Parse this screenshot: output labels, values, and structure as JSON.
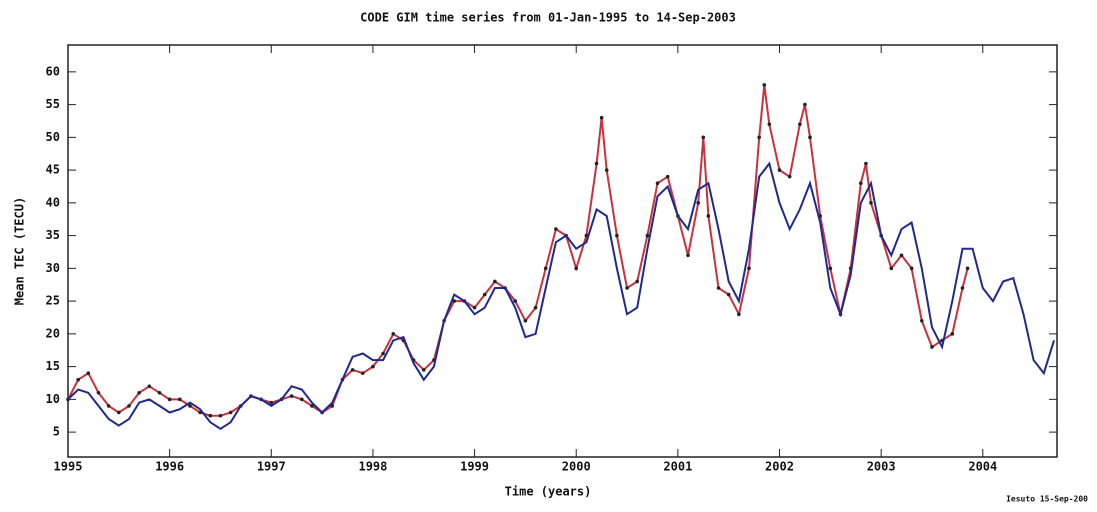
{
  "chart_data": {
    "type": "line",
    "title": "CODE GIM time series from 01-Jan-1995 to 14-Sep-2003",
    "x_label": "Time (years)",
    "y_label": "Mean TEC (TECU)",
    "footnote": "Iesuto 15-Sep-200",
    "xlim": [
      1995,
      2004.73
    ],
    "ylim": [
      1.2,
      64.1
    ],
    "xticks": [
      1995,
      1996,
      1997,
      1998,
      1999,
      2000,
      2001,
      2002,
      2003,
      2004
    ],
    "yticks": [
      5,
      10,
      15,
      20,
      25,
      30,
      35,
      40,
      45,
      50,
      55,
      60
    ],
    "series": [
      {
        "color": "#c8323c",
        "marker_color": "#222222",
        "x": [
          1995.0,
          1995.1,
          1995.2,
          1995.3,
          1995.4,
          1995.5,
          1995.6,
          1995.7,
          1995.8,
          1995.9,
          1996.0,
          1996.1,
          1996.2,
          1996.3,
          1996.4,
          1996.5,
          1996.6,
          1996.7,
          1996.8,
          1996.9,
          1997.0,
          1997.1,
          1997.2,
          1997.3,
          1997.4,
          1997.5,
          1997.6,
          1997.7,
          1997.8,
          1997.9,
          1998.0,
          1998.1,
          1998.2,
          1998.3,
          1998.4,
          1998.5,
          1998.6,
          1998.7,
          1998.8,
          1998.9,
          1999.0,
          1999.1,
          1999.2,
          1999.3,
          1999.4,
          1999.5,
          1999.6,
          1999.7,
          1999.8,
          1999.9,
          2000.0,
          2000.1,
          2000.2,
          2000.25,
          2000.3,
          2000.4,
          2000.5,
          2000.6,
          2000.7,
          2000.8,
          2000.9,
          2001.0,
          2001.1,
          2001.2,
          2001.25,
          2001.3,
          2001.4,
          2001.5,
          2001.6,
          2001.7,
          2001.8,
          2001.85,
          2001.9,
          2002.0,
          2002.1,
          2002.2,
          2002.25,
          2002.3,
          2002.4,
          2002.5,
          2002.6,
          2002.7,
          2002.8,
          2002.85,
          2002.9,
          2003.0,
          2003.1,
          2003.2,
          2003.3,
          2003.4,
          2003.5,
          2003.6,
          2003.7,
          2003.8,
          2003.85
        ],
        "values": [
          10,
          13,
          14,
          11,
          9,
          8,
          9,
          11,
          12,
          11,
          10,
          10,
          9,
          8,
          7.5,
          7.5,
          8,
          9,
          10.5,
          10,
          9.5,
          10,
          10.5,
          10,
          9,
          8,
          9,
          13,
          14.5,
          14,
          15,
          17,
          20,
          19,
          16,
          14.5,
          16,
          22,
          25,
          25,
          24,
          26,
          28,
          27,
          25,
          22,
          24,
          30,
          36,
          35,
          30,
          35,
          46,
          53,
          45,
          35,
          27,
          28,
          35,
          43,
          44,
          38,
          32,
          40,
          50,
          38,
          27,
          26,
          23,
          30,
          50,
          58,
          52,
          45,
          44,
          52,
          55,
          50,
          38,
          30,
          23,
          30,
          43,
          46,
          40,
          35,
          30,
          32,
          30,
          22,
          18,
          19,
          20,
          27,
          30
        ]
      },
      {
        "color": "#1f2a8c",
        "x": [
          1995.0,
          1995.1,
          1995.2,
          1995.3,
          1995.4,
          1995.5,
          1995.6,
          1995.7,
          1995.8,
          1995.9,
          1996.0,
          1996.1,
          1996.2,
          1996.3,
          1996.4,
          1996.5,
          1996.6,
          1996.7,
          1996.8,
          1996.9,
          1997.0,
          1997.1,
          1997.2,
          1997.3,
          1997.4,
          1997.5,
          1997.6,
          1997.7,
          1997.8,
          1997.9,
          1998.0,
          1998.1,
          1998.2,
          1998.3,
          1998.4,
          1998.5,
          1998.6,
          1998.7,
          1998.8,
          1998.9,
          1999.0,
          1999.1,
          1999.2,
          1999.3,
          1999.4,
          1999.5,
          1999.6,
          1999.7,
          1999.8,
          1999.9,
          2000.0,
          2000.1,
          2000.2,
          2000.3,
          2000.4,
          2000.5,
          2000.6,
          2000.7,
          2000.8,
          2000.9,
          2001.0,
          2001.1,
          2001.2,
          2001.3,
          2001.4,
          2001.5,
          2001.6,
          2001.7,
          2001.8,
          2001.9,
          2002.0,
          2002.1,
          2002.2,
          2002.3,
          2002.4,
          2002.5,
          2002.6,
          2002.7,
          2002.8,
          2002.9,
          2003.0,
          2003.1,
          2003.2,
          2003.3,
          2003.4,
          2003.5,
          2003.6,
          2003.7,
          2003.8,
          2003.9,
          2004.0,
          2004.1,
          2004.2,
          2004.3,
          2004.4,
          2004.5,
          2004.6,
          2004.7
        ],
        "values": [
          10,
          11.5,
          11,
          9,
          7,
          6,
          7,
          9.5,
          10,
          9,
          8,
          8.5,
          9.5,
          8.5,
          6.5,
          5.5,
          6.5,
          9,
          10.5,
          10,
          9,
          10,
          12,
          11.5,
          9.5,
          8,
          9.5,
          13,
          16.5,
          17,
          16,
          16,
          19,
          19.5,
          15.5,
          13,
          15,
          22,
          26,
          25,
          23,
          24,
          27,
          27,
          24,
          19.5,
          20,
          27,
          34,
          35,
          33,
          34,
          39,
          38,
          30,
          23,
          24,
          33,
          41,
          42.5,
          38,
          36,
          42,
          43,
          36,
          28,
          25,
          33,
          44,
          46,
          40,
          36,
          39,
          43,
          37,
          27,
          23,
          29,
          40,
          43,
          35,
          32,
          36,
          37,
          30,
          21,
          18,
          25,
          33,
          33,
          27,
          25,
          28,
          28.5,
          23,
          16,
          14,
          19
        ]
      }
    ]
  }
}
